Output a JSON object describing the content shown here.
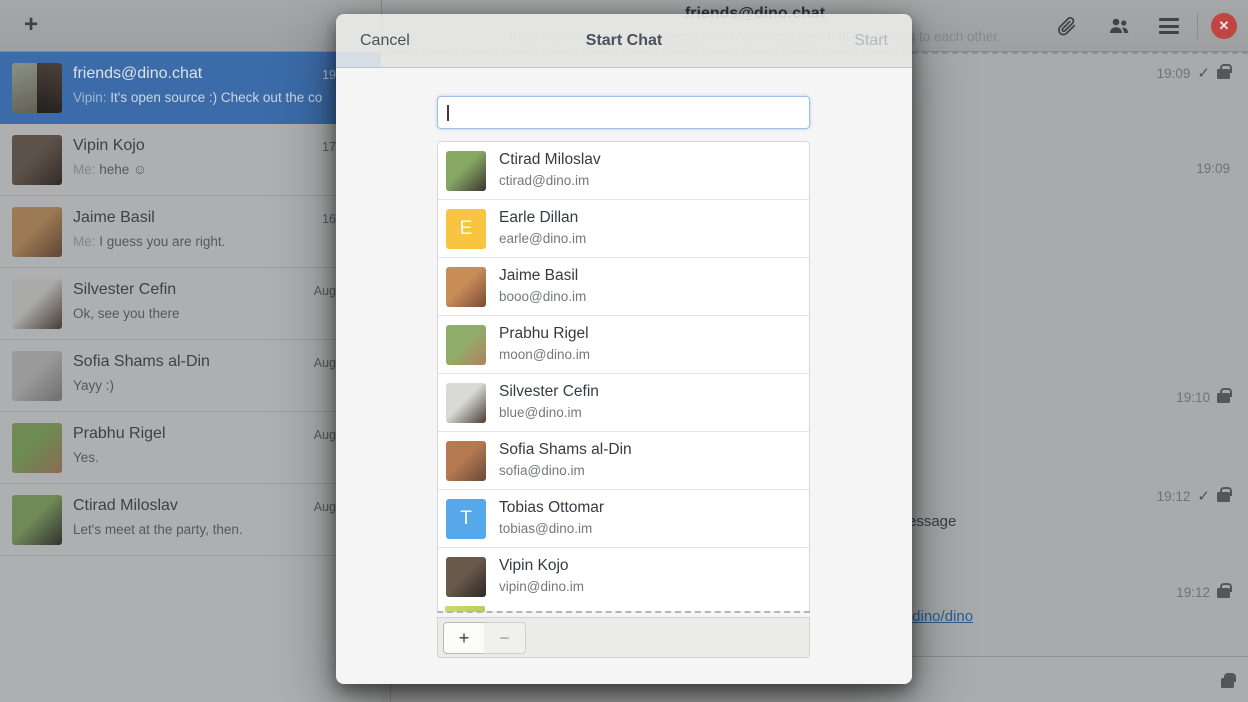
{
  "topbar": {
    "add_button_glyph": "+",
    "title": "friends@dino.chat",
    "subtitle": "If we have no peace, it is because we have forgotten that we belong to each other.",
    "close_glyph": "✕"
  },
  "sidebar": {
    "conversations": [
      {
        "name": "friends@dino.chat",
        "time_visible": "19",
        "preview_prefix": "Vipin:",
        "preview": "It's open source :) Check out the co",
        "selected": true,
        "avatar": {
          "type": "photo-split",
          "c1": "#8a9383",
          "c2": "#4c423c"
        }
      },
      {
        "name": "Vipin Kojo",
        "time_visible": "17",
        "preview_prefix": "Me:",
        "preview": "hehe ☺",
        "selected": false,
        "avatar": {
          "type": "photo",
          "c1": "#5d5249",
          "c2": "#332c27"
        }
      },
      {
        "name": "Jaime Basil",
        "time_visible": "16",
        "preview_prefix": "Me:",
        "preview": "I guess you are right.",
        "selected": false,
        "avatar": {
          "type": "photo",
          "c1": "#9c7a55",
          "c2": "#5d4434"
        }
      },
      {
        "name": "Silvester Cefin",
        "time_visible": "Aug",
        "preview_prefix": "",
        "preview": "Ok, see you there",
        "selected": false,
        "avatar": {
          "type": "photo",
          "c1": "#aaaaa8",
          "c2": "#473c33"
        }
      },
      {
        "name": "Sofia Shams al-Din",
        "time_visible": "Aug",
        "preview_prefix": "",
        "preview": "Yayy :)",
        "selected": false,
        "avatar": {
          "type": "photo",
          "c1": "#9a9a9a",
          "c2": "#6e6e6e"
        }
      },
      {
        "name": "Prabhu Rigel",
        "time_visible": "Aug",
        "preview_prefix": "",
        "preview": "Yes.",
        "selected": false,
        "avatar": {
          "type": "photo",
          "c1": "#6f8a55",
          "c2": "#8a6a50"
        }
      },
      {
        "name": "Ctirad Miloslav",
        "time_visible": "Aug",
        "preview_prefix": "",
        "preview": "Let's meet at the party, then.",
        "selected": false,
        "avatar": {
          "type": "photo",
          "c1": "#6f8a57",
          "c2": "#363230"
        }
      }
    ]
  },
  "chat": {
    "markers": [
      {
        "time": "19:09",
        "delivered": true,
        "encrypted": true
      },
      {
        "time": "19:09",
        "delivered": false,
        "encrypted": false
      },
      {
        "time": "19:10",
        "delivered": false,
        "encrypted": true
      },
      {
        "time": "19:12",
        "delivered": true,
        "encrypted": true
      },
      {
        "time": "19:12",
        "delivered": false,
        "encrypted": true
      }
    ],
    "message_fragment": "essage",
    "link_fragment": "/dino/dino"
  },
  "dialog": {
    "cancel_label": "Cancel",
    "title": "Start Chat",
    "start_label": "Start",
    "search_value": "",
    "contacts": [
      {
        "name": "Ctirad Miloslav",
        "jid": "ctirad@dino.im",
        "avatar": {
          "type": "photo",
          "c1": "#86a863",
          "c2": "#3a3532"
        }
      },
      {
        "name": "Earle Dillan",
        "jid": "earle@dino.im",
        "avatar": {
          "type": "letter",
          "letter": "E",
          "bg": "#f9c440"
        }
      },
      {
        "name": "Jaime Basil",
        "jid": "booo@dino.im",
        "avatar": {
          "type": "photo",
          "c1": "#c98d5a",
          "c2": "#7a4a33"
        }
      },
      {
        "name": "Prabhu Rigel",
        "jid": "moon@dino.im",
        "avatar": {
          "type": "photo",
          "c1": "#8fae6a",
          "c2": "#b0815e"
        }
      },
      {
        "name": "Silvester Cefin",
        "jid": "blue@dino.im",
        "avatar": {
          "type": "photo",
          "c1": "#d9d9d7",
          "c2": "#4a3c33"
        }
      },
      {
        "name": "Sofia Shams al-Din",
        "jid": "sofia@dino.im",
        "avatar": {
          "type": "photo",
          "c1": "#b57a52",
          "c2": "#6a4a38"
        }
      },
      {
        "name": "Tobias Ottomar",
        "jid": "tobias@dino.im",
        "avatar": {
          "type": "letter",
          "letter": "T",
          "bg": "#57a8ea"
        }
      },
      {
        "name": "Vipin Kojo",
        "jid": "vipin@dino.im",
        "avatar": {
          "type": "photo",
          "c1": "#6a5a4c",
          "c2": "#2f2823"
        }
      }
    ],
    "partial_contact_color": "#ccdb6b",
    "toolbar": {
      "add_glyph": "+",
      "remove_glyph": "−"
    }
  }
}
